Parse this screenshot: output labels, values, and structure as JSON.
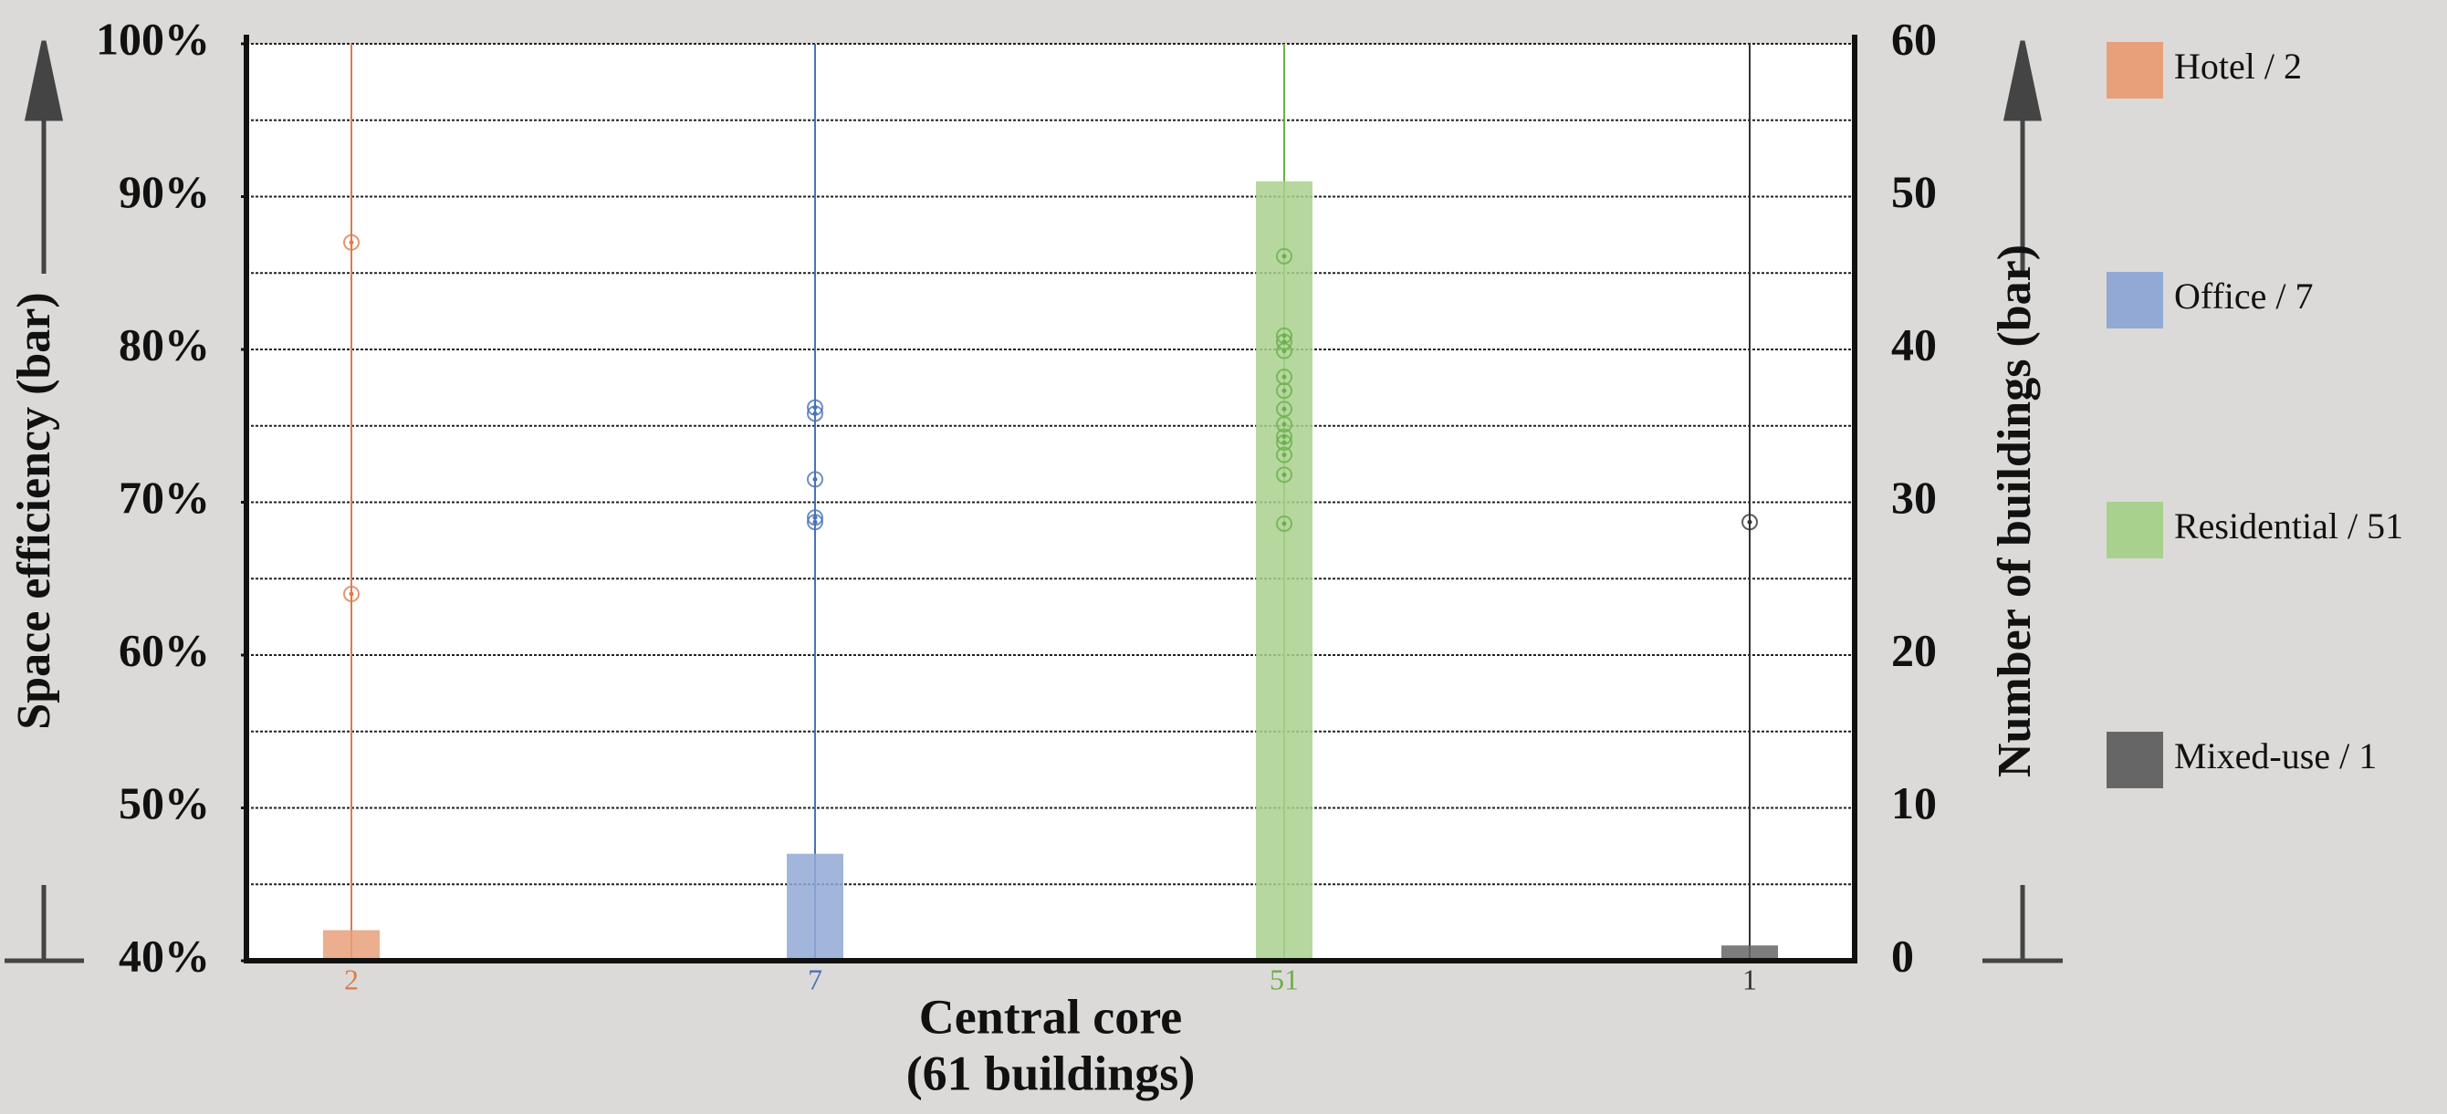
{
  "chart_data": {
    "type": "bar",
    "ylabel": "Space efficiency (bar)",
    "y2label": "Number of buildings (bar)",
    "xlabel": [
      "Central core",
      "(61 buildings)"
    ],
    "ylim": [
      40,
      100
    ],
    "yticks": [
      {
        "value": 40,
        "label": "40%"
      },
      {
        "value": 50,
        "label": "50%"
      },
      {
        "value": 60,
        "label": "60%"
      },
      {
        "value": 70,
        "label": "70%"
      },
      {
        "value": 80,
        "label": "80%"
      },
      {
        "value": 90,
        "label": "90%"
      },
      {
        "value": 100,
        "label": "100%"
      }
    ],
    "y2lim": [
      0,
      60
    ],
    "y2ticks": [
      0,
      10,
      20,
      30,
      40,
      50,
      60
    ],
    "y2minor": [
      5,
      15,
      25,
      35,
      45,
      55
    ],
    "grid": true,
    "legend": "right",
    "series": [
      {
        "name": "Hotel / 2",
        "color": "#e8a07a",
        "line_color": "#e07a4a",
        "count": 2,
        "axis_count": "y2",
        "values": [
          87,
          64
        ]
      },
      {
        "name": "Office / 7",
        "color": "#92a9d6",
        "line_color": "#4a72b8",
        "count": 7,
        "axis_count": "y2",
        "values": [
          76.2,
          75.8,
          71.5,
          69,
          68.7
        ]
      },
      {
        "name": "Residential / 51",
        "color": "#a9d18e",
        "line_color": "#6ab04c",
        "count": 51,
        "axis_count": "y2",
        "values": [
          86.1,
          80.9,
          80.5,
          79.9,
          78.2,
          77.3,
          76.1,
          75.1,
          74.3,
          73.9,
          73.1,
          71.8,
          68.6
        ]
      },
      {
        "name": "Mixed-use / 1",
        "color": "#666666",
        "line_color": "#333333",
        "count": 1,
        "axis_count": "y2",
        "values": [
          68.7
        ]
      }
    ]
  }
}
